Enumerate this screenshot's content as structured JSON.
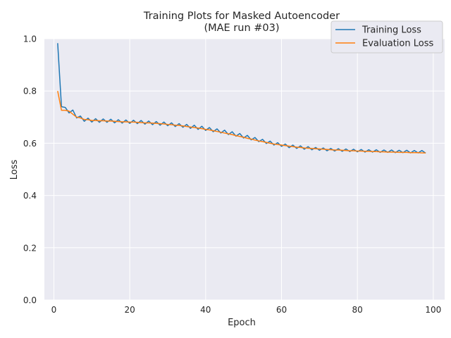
{
  "chart_data": {
    "type": "line",
    "title": "Training Plots for Masked Autoencoder",
    "subtitle": "(MAE run #03)",
    "xlabel": "Epoch",
    "ylabel": "Loss",
    "xlim": [
      -2.5,
      103
    ],
    "ylim": [
      0.0,
      1.0
    ],
    "xticks": [
      0,
      20,
      40,
      60,
      80,
      100
    ],
    "yticks": [
      0.0,
      0.2,
      0.4,
      0.6,
      0.8,
      1.0
    ],
    "grid": true,
    "legend_position": "top-right",
    "x": [
      1,
      2,
      3,
      4,
      5,
      6,
      7,
      8,
      9,
      10,
      11,
      12,
      13,
      14,
      15,
      16,
      17,
      18,
      19,
      20,
      21,
      22,
      23,
      24,
      25,
      26,
      27,
      28,
      29,
      30,
      31,
      32,
      33,
      34,
      35,
      36,
      37,
      38,
      39,
      40,
      41,
      42,
      43,
      44,
      45,
      46,
      47,
      48,
      49,
      50,
      51,
      52,
      53,
      54,
      55,
      56,
      57,
      58,
      59,
      60,
      61,
      62,
      63,
      64,
      65,
      66,
      67,
      68,
      69,
      70,
      71,
      72,
      73,
      74,
      75,
      76,
      77,
      78,
      79,
      80,
      81,
      82,
      83,
      84,
      85,
      86,
      87,
      88,
      89,
      90,
      91,
      92,
      93,
      94,
      95,
      96,
      97,
      98
    ],
    "series": [
      {
        "name": "Training Loss",
        "color": "#1f77b4",
        "values": [
          0.983,
          0.74,
          0.737,
          0.716,
          0.727,
          0.697,
          0.704,
          0.684,
          0.696,
          0.681,
          0.694,
          0.68,
          0.693,
          0.68,
          0.692,
          0.678,
          0.69,
          0.677,
          0.689,
          0.676,
          0.688,
          0.675,
          0.687,
          0.673,
          0.685,
          0.671,
          0.683,
          0.669,
          0.681,
          0.667,
          0.678,
          0.664,
          0.675,
          0.661,
          0.672,
          0.657,
          0.669,
          0.653,
          0.665,
          0.649,
          0.66,
          0.644,
          0.655,
          0.639,
          0.65,
          0.633,
          0.644,
          0.627,
          0.637,
          0.62,
          0.63,
          0.613,
          0.622,
          0.606,
          0.615,
          0.599,
          0.608,
          0.593,
          0.602,
          0.588,
          0.597,
          0.583,
          0.593,
          0.58,
          0.59,
          0.577,
          0.587,
          0.575,
          0.584,
          0.573,
          0.582,
          0.571,
          0.58,
          0.57,
          0.579,
          0.569,
          0.578,
          0.568,
          0.577,
          0.567,
          0.576,
          0.566,
          0.575,
          0.566,
          0.575,
          0.565,
          0.574,
          0.565,
          0.574,
          0.564,
          0.573,
          0.564,
          0.573,
          0.563,
          0.572,
          0.563,
          0.572,
          0.562
        ]
      },
      {
        "name": "Evaluation Loss",
        "color": "#ff7f0e",
        "values": [
          0.8,
          0.726,
          0.726,
          0.723,
          0.711,
          0.7,
          0.697,
          0.691,
          0.69,
          0.687,
          0.687,
          0.686,
          0.686,
          0.685,
          0.685,
          0.684,
          0.683,
          0.682,
          0.682,
          0.681,
          0.681,
          0.68,
          0.679,
          0.678,
          0.678,
          0.677,
          0.676,
          0.675,
          0.674,
          0.672,
          0.671,
          0.669,
          0.668,
          0.666,
          0.664,
          0.662,
          0.66,
          0.658,
          0.656,
          0.653,
          0.651,
          0.648,
          0.645,
          0.642,
          0.639,
          0.636,
          0.633,
          0.629,
          0.626,
          0.623,
          0.619,
          0.616,
          0.612,
          0.609,
          0.606,
          0.603,
          0.6,
          0.597,
          0.595,
          0.593,
          0.591,
          0.589,
          0.587,
          0.585,
          0.584,
          0.582,
          0.581,
          0.58,
          0.579,
          0.578,
          0.577,
          0.576,
          0.575,
          0.574,
          0.574,
          0.573,
          0.572,
          0.571,
          0.571,
          0.57,
          0.57,
          0.569,
          0.569,
          0.568,
          0.568,
          0.567,
          0.567,
          0.566,
          0.566,
          0.566,
          0.565,
          0.565,
          0.565,
          0.564,
          0.564,
          0.564,
          0.563,
          0.563
        ]
      }
    ]
  }
}
